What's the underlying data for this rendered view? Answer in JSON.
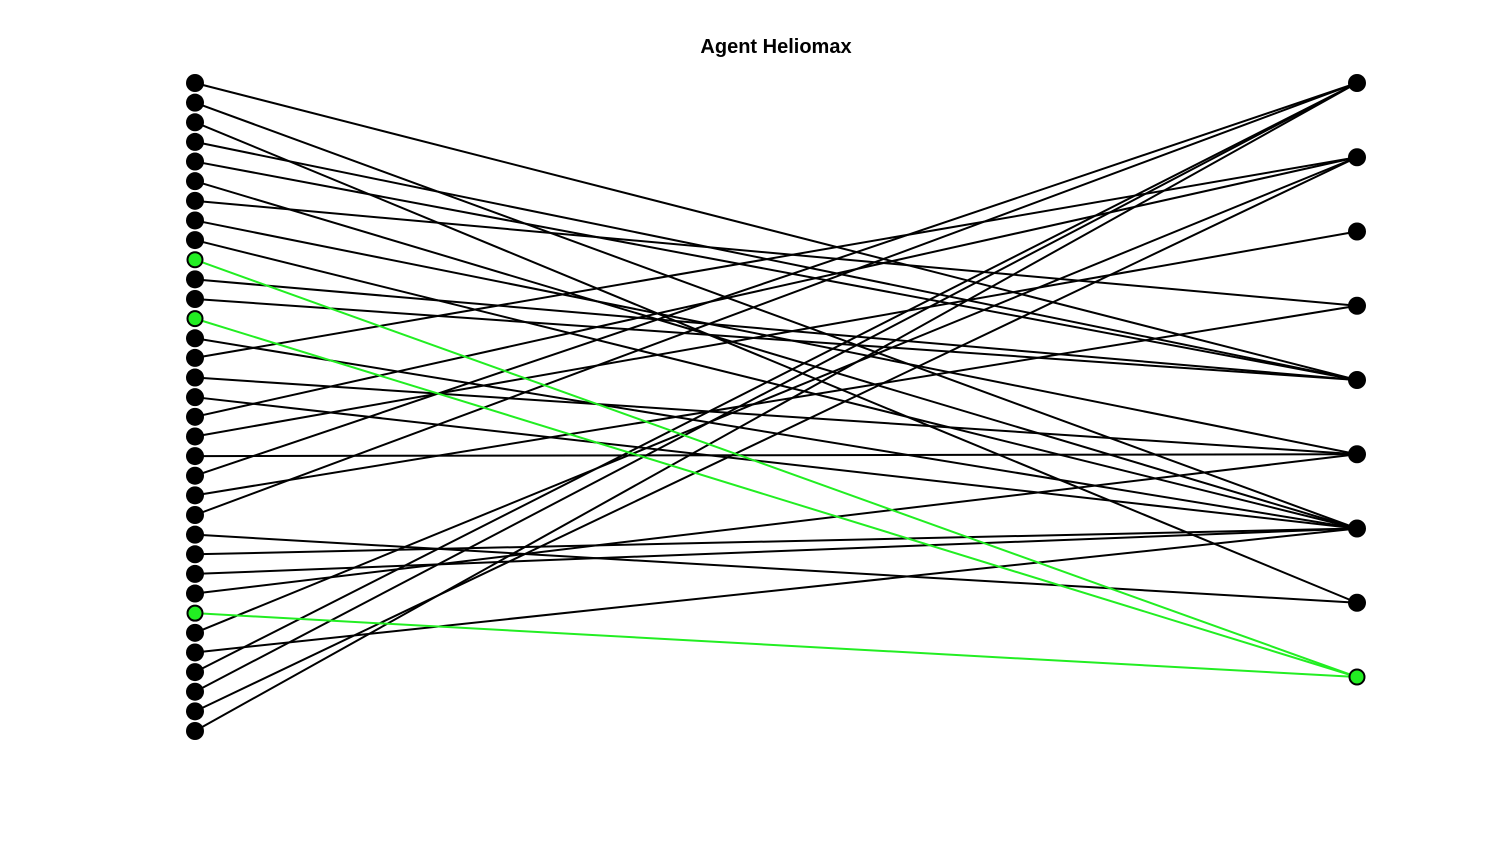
{
  "title": "Agent Heliomax",
  "colors": {
    "default": "#000000",
    "highlight": "#22ee22"
  },
  "left_node_count": 34,
  "right_node_count": 9,
  "highlight": {
    "left": [
      9,
      12,
      27
    ],
    "right": [
      8
    ]
  },
  "edges": [
    [
      0,
      4
    ],
    [
      1,
      6
    ],
    [
      2,
      7
    ],
    [
      3,
      4
    ],
    [
      4,
      4
    ],
    [
      5,
      6
    ],
    [
      6,
      3
    ],
    [
      7,
      5
    ],
    [
      8,
      6
    ],
    [
      9,
      8
    ],
    [
      10,
      4
    ],
    [
      11,
      4
    ],
    [
      12,
      8
    ],
    [
      13,
      6
    ],
    [
      14,
      1
    ],
    [
      15,
      5
    ],
    [
      16,
      6
    ],
    [
      17,
      1
    ],
    [
      18,
      2
    ],
    [
      19,
      5
    ],
    [
      20,
      0
    ],
    [
      21,
      3
    ],
    [
      22,
      0
    ],
    [
      23,
      7
    ],
    [
      24,
      6
    ],
    [
      25,
      6
    ],
    [
      26,
      5
    ],
    [
      27,
      8
    ],
    [
      28,
      1
    ],
    [
      29,
      6
    ],
    [
      30,
      0
    ],
    [
      31,
      0
    ],
    [
      32,
      1
    ],
    [
      33,
      0
    ]
  ]
}
